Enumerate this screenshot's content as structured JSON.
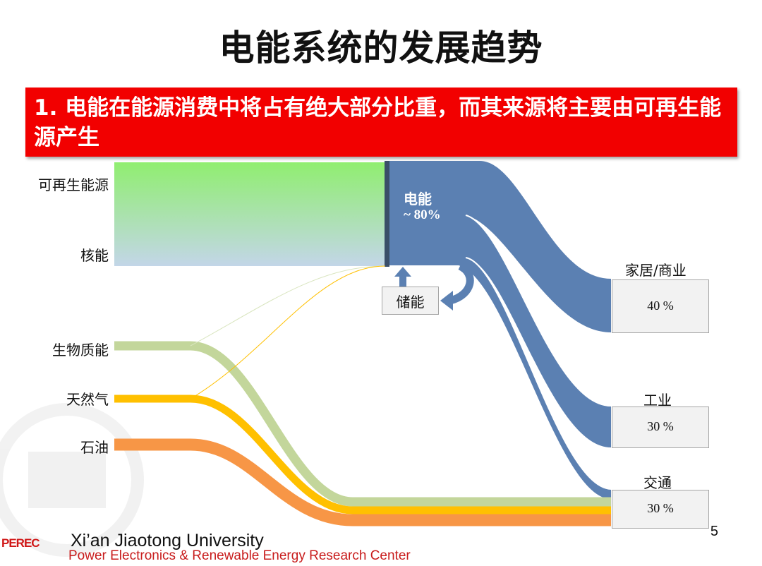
{
  "slide": {
    "title": "电能系统的发展趋势",
    "banner": "1. 电能在能源消费中将占有绝大部分比重，而其来源将主要由可再生能源产生",
    "page_number": "5"
  },
  "sources": {
    "renewable": "可再生能源",
    "nuclear": "核能",
    "biomass": "生物质能",
    "natural_gas": "天然气",
    "oil": "石油"
  },
  "electricity": {
    "label": "电能",
    "share": "~ 80%"
  },
  "storage": {
    "label": "储能"
  },
  "destinations": {
    "residential": {
      "label": "家居/商业",
      "share": "40 %"
    },
    "industry": {
      "label": "工业",
      "share": "30 %"
    },
    "transport": {
      "label": "交通",
      "share": "30 %"
    }
  },
  "footer": {
    "logo": "PEREC",
    "university": "Xi’an Jiaotong University",
    "center": "Power Electronics & Renewable Energy Research Center"
  },
  "colors": {
    "banner": "#f20000",
    "electricity": "#5b80b2",
    "renewable_top": "#90ee70",
    "nuclear_bottom": "#c3d6e8",
    "biomass": "#c3d69b",
    "natural_gas": "#ffc000",
    "oil": "#f79646"
  }
}
